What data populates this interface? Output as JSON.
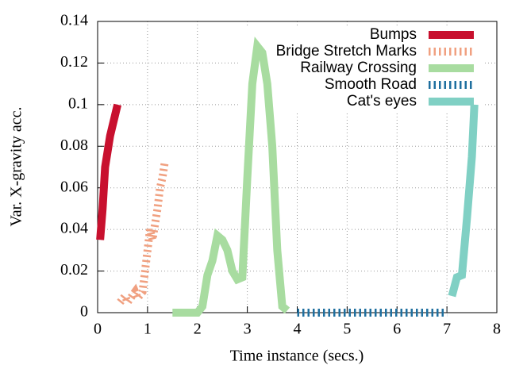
{
  "chart_data": {
    "type": "line",
    "x_label": "Time instance (secs.)",
    "y_label": "Var. X-gravity acc.",
    "xlim": [
      0,
      8
    ],
    "xticks": [
      0,
      1,
      2,
      3,
      4,
      5,
      6,
      7,
      8
    ],
    "ylim": [
      0,
      0.14
    ],
    "yticks": [
      0,
      0.02,
      0.04,
      0.06,
      0.08,
      0.1,
      0.12,
      0.14
    ],
    "grid": true,
    "legend": "top-right",
    "series": [
      {
        "name": "Bumps",
        "color": "#c8102e",
        "dashed": false,
        "x": [
          0.05,
          0.1,
          0.15,
          0.25,
          0.4
        ],
        "values": [
          0.035,
          0.05,
          0.07,
          0.085,
          0.1
        ]
      },
      {
        "name": "Bridge Stretch Marks",
        "color": "#f0a080",
        "dashed": true,
        "x": [
          0.45,
          0.55,
          0.6,
          0.75,
          0.8,
          0.9,
          1.0,
          1.05,
          1.1,
          1.2,
          1.25,
          1.3,
          1.35
        ],
        "values": [
          0.005,
          0.008,
          0.005,
          0.01,
          0.007,
          0.01,
          0.03,
          0.04,
          0.035,
          0.05,
          0.06,
          0.065,
          0.073
        ]
      },
      {
        "name": "Railway Crossing",
        "color": "#a8dca0",
        "dashed": false,
        "x": [
          1.5,
          2.0,
          2.1,
          2.2,
          2.3,
          2.4,
          2.5,
          2.6,
          2.7,
          2.8,
          2.9,
          3.0,
          3.1,
          3.2,
          3.3,
          3.4,
          3.5,
          3.6,
          3.7,
          3.8
        ],
        "values": [
          0,
          0,
          0.003,
          0.018,
          0.025,
          0.037,
          0.035,
          0.03,
          0.02,
          0.016,
          0.017,
          0.065,
          0.11,
          0.128,
          0.125,
          0.11,
          0.08,
          0.03,
          0.003,
          0.001
        ]
      },
      {
        "name": "Smooth Road",
        "color": "#1f6f9f",
        "dashed": true,
        "x": [
          4.0,
          4.5,
          5.0,
          5.5,
          6.0,
          6.5,
          7.0
        ],
        "values": [
          0,
          0,
          0,
          0,
          0,
          0,
          0
        ]
      },
      {
        "name": "Cat's eyes",
        "color": "#80d0c4",
        "dashed": false,
        "x": [
          7.1,
          7.2,
          7.3,
          7.4,
          7.5,
          7.55
        ],
        "values": [
          0.008,
          0.017,
          0.018,
          0.045,
          0.075,
          0.1
        ]
      }
    ]
  }
}
